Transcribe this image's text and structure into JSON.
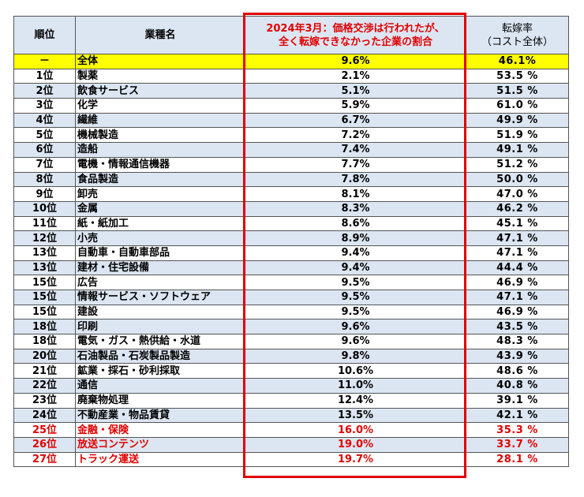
{
  "headers": {
    "rank": "順位",
    "industry": "業種名",
    "ratio_line1": "2024年3月：価格交渉は行われたが、",
    "ratio_line2": "全く転嫁できなかった企業の割合",
    "pass_line1": "転嫁率",
    "pass_line2": "（コスト全体）"
  },
  "colors": {
    "highlight_red": "#e00000",
    "header_blue": "#dce6f2",
    "total_yellow": "#ffff00"
  },
  "rows": [
    {
      "rank": "－",
      "industry": "全体",
      "ratio": "9.6%",
      "pass_rate": "46.1%",
      "style": "total"
    },
    {
      "rank": "1位",
      "industry": "製薬",
      "ratio": "2.1%",
      "pass_rate": "53.5 %",
      "style": ""
    },
    {
      "rank": "2位",
      "industry": "飲食サービス",
      "ratio": "5.1%",
      "pass_rate": "51.5 %",
      "style": ""
    },
    {
      "rank": "3位",
      "industry": "化学",
      "ratio": "5.9%",
      "pass_rate": "61.0 %",
      "style": ""
    },
    {
      "rank": "4位",
      "industry": "繊維",
      "ratio": "6.7%",
      "pass_rate": "49.9 %",
      "style": ""
    },
    {
      "rank": "5位",
      "industry": "機械製造",
      "ratio": "7.2%",
      "pass_rate": "51.9 %",
      "style": ""
    },
    {
      "rank": "6位",
      "industry": "造船",
      "ratio": "7.4%",
      "pass_rate": "49.1 %",
      "style": ""
    },
    {
      "rank": "7位",
      "industry": "電機・情報通信機器",
      "ratio": "7.7%",
      "pass_rate": "51.2 %",
      "style": ""
    },
    {
      "rank": "8位",
      "industry": "食品製造",
      "ratio": "7.8%",
      "pass_rate": "50.0 %",
      "style": ""
    },
    {
      "rank": "9位",
      "industry": "卸売",
      "ratio": "8.1%",
      "pass_rate": "47.0 %",
      "style": ""
    },
    {
      "rank": "10位",
      "industry": "金属",
      "ratio": "8.3%",
      "pass_rate": "46.2 %",
      "style": ""
    },
    {
      "rank": "11位",
      "industry": "紙・紙加工",
      "ratio": "8.6%",
      "pass_rate": "45.1 %",
      "style": ""
    },
    {
      "rank": "12位",
      "industry": "小売",
      "ratio": "8.9%",
      "pass_rate": "47.1 %",
      "style": ""
    },
    {
      "rank": "13位",
      "industry": "自動車・自動車部品",
      "ratio": "9.4%",
      "pass_rate": "47.1 %",
      "style": ""
    },
    {
      "rank": "13位",
      "industry": "建材・住宅設備",
      "ratio": "9.4%",
      "pass_rate": "44.4 %",
      "style": ""
    },
    {
      "rank": "15位",
      "industry": "広告",
      "ratio": "9.5%",
      "pass_rate": "46.9 %",
      "style": ""
    },
    {
      "rank": "15位",
      "industry": "情報サービス・ソフトウェア",
      "ratio": "9.5%",
      "pass_rate": "47.1 %",
      "style": ""
    },
    {
      "rank": "15位",
      "industry": "建設",
      "ratio": "9.5%",
      "pass_rate": "46.9 %",
      "style": ""
    },
    {
      "rank": "18位",
      "industry": "印刷",
      "ratio": "9.6%",
      "pass_rate": "43.5 %",
      "style": ""
    },
    {
      "rank": "18位",
      "industry": "電気・ガス・熱供給・水道",
      "ratio": "9.6%",
      "pass_rate": "48.3 %",
      "style": ""
    },
    {
      "rank": "20位",
      "industry": "石油製品・石炭製品製造",
      "ratio": "9.8%",
      "pass_rate": "43.9 %",
      "style": ""
    },
    {
      "rank": "21位",
      "industry": "鉱業・採石・砂利採取",
      "ratio": "10.6%",
      "pass_rate": "48.6 %",
      "style": ""
    },
    {
      "rank": "22位",
      "industry": "通信",
      "ratio": "11.0%",
      "pass_rate": "40.8 %",
      "style": ""
    },
    {
      "rank": "23位",
      "industry": "廃棄物処理",
      "ratio": "12.4%",
      "pass_rate": "39.1 %",
      "style": ""
    },
    {
      "rank": "24位",
      "industry": "不動産業・物品賃貸",
      "ratio": "13.5%",
      "pass_rate": "42.1 %",
      "style": ""
    },
    {
      "rank": "25位",
      "industry": "金融・保険",
      "ratio": "16.0%",
      "pass_rate": "35.3 %",
      "style": "red"
    },
    {
      "rank": "26位",
      "industry": "放送コンテンツ",
      "ratio": "19.0%",
      "pass_rate": "33.7 %",
      "style": "red"
    },
    {
      "rank": "27位",
      "industry": "トラック運送",
      "ratio": "19.7%",
      "pass_rate": "28.1 %",
      "style": "red"
    }
  ]
}
